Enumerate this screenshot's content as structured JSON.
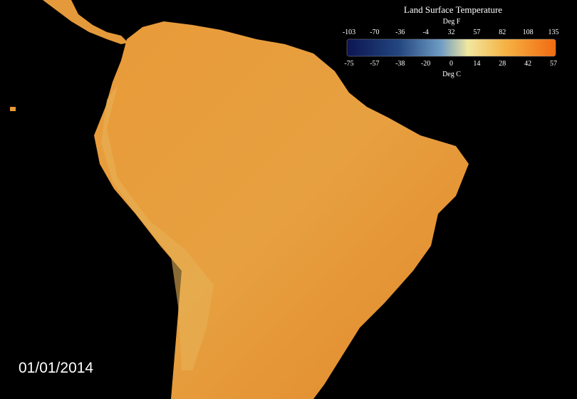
{
  "title": "Land Surface Temperature",
  "legend": {
    "unit_top": "Deg F",
    "ticks_top": [
      "-103",
      "-70",
      "-36",
      "-4",
      "32",
      "57",
      "82",
      "108",
      "135"
    ],
    "unit_bottom": "Deg C",
    "ticks_bottom": [
      "-75",
      "-57",
      "-38",
      "-20",
      "0",
      "14",
      "28",
      "42",
      "57"
    ]
  },
  "date": "01/01/2014"
}
